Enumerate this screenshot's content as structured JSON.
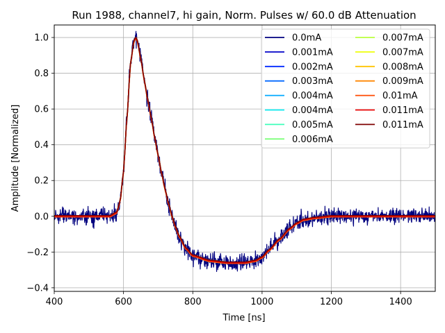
{
  "chart_data": {
    "type": "line",
    "title": "Run 1988, channel7, hi gain, Norm. Pulses w/ 60.0 dB Attenuation",
    "xlabel": "Time [ns]",
    "ylabel": "Amplitude [Normalized]",
    "xlim": [
      400,
      1500
    ],
    "ylim": [
      -0.42,
      1.07
    ],
    "xticks": [
      400,
      600,
      800,
      1000,
      1200,
      1400
    ],
    "yticks": [
      -0.4,
      -0.2,
      0.0,
      0.2,
      0.4,
      0.6,
      0.8,
      1.0
    ],
    "xtick_labels": [
      "400",
      "600",
      "800",
      "1000",
      "1200",
      "1400"
    ],
    "ytick_labels": [
      "−0.4",
      "−0.2",
      "0.0",
      "0.2",
      "0.4",
      "0.6",
      "0.8",
      "1.0"
    ],
    "grid": true,
    "legend_position": "top-right",
    "legend_columns": 2,
    "pulse_shape": {
      "x": [
        400,
        560,
        580,
        590,
        600,
        610,
        620,
        630,
        635,
        640,
        650,
        660,
        670,
        680,
        690,
        700,
        710,
        720,
        730,
        740,
        750,
        760,
        780,
        800,
        850,
        900,
        950,
        980,
        1000,
        1020,
        1050,
        1080,
        1100,
        1120,
        1150,
        1200,
        1300,
        1400,
        1500
      ],
      "y": [
        0.0,
        0.0,
        0.02,
        0.08,
        0.25,
        0.55,
        0.85,
        0.98,
        1.0,
        0.98,
        0.88,
        0.76,
        0.65,
        0.55,
        0.44,
        0.34,
        0.24,
        0.15,
        0.07,
        0.0,
        -0.06,
        -0.11,
        -0.18,
        -0.22,
        -0.25,
        -0.26,
        -0.26,
        -0.25,
        -0.23,
        -0.19,
        -0.13,
        -0.07,
        -0.04,
        -0.02,
        -0.01,
        0.0,
        0.0,
        0.0,
        0.0
      ],
      "noise_amplitude_first_series": 0.05
    },
    "series": [
      {
        "name": "0.0mA",
        "color": "#00007f"
      },
      {
        "name": "0.001mA",
        "color": "#0000c8"
      },
      {
        "name": "0.002mA",
        "color": "#0028ff"
      },
      {
        "name": "0.003mA",
        "color": "#0068ff"
      },
      {
        "name": "0.004mA",
        "color": "#00a8ff"
      },
      {
        "name": "0.004mA",
        "color": "#08e8ee"
      },
      {
        "name": "0.005mA",
        "color": "#3cffba"
      },
      {
        "name": "0.006mA",
        "color": "#7cff79"
      },
      {
        "name": "0.007mA",
        "color": "#baff3c"
      },
      {
        "name": "0.007mA",
        "color": "#eeff08"
      },
      {
        "name": "0.008mA",
        "color": "#ffc400"
      },
      {
        "name": "0.009mA",
        "color": "#ff8600"
      },
      {
        "name": "0.01mA",
        "color": "#ff4800"
      },
      {
        "name": "0.011mA",
        "color": "#e80000"
      },
      {
        "name": "0.011mA",
        "color": "#7f0000"
      }
    ]
  }
}
